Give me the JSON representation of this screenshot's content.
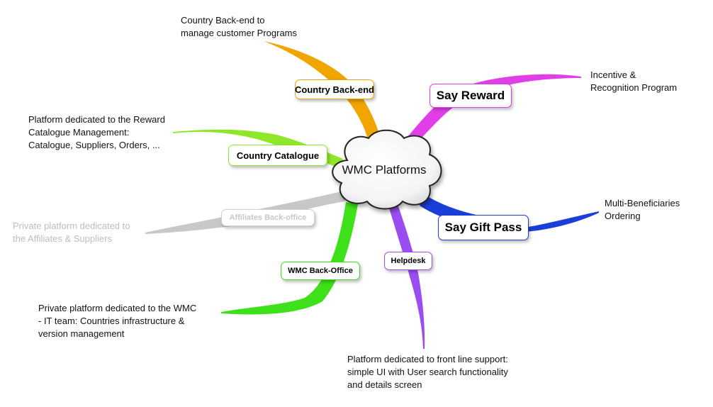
{
  "center": {
    "label": "WMC Platforms"
  },
  "nodes": [
    {
      "id": "country-backend",
      "label": "Country Back-end",
      "color": "#f0a500",
      "description": "Country Back-end to\nmanage customer Programs"
    },
    {
      "id": "say-reward",
      "label": "Say Reward",
      "color": "#e23ee8",
      "description": "Incentive &\nRecognition Program"
    },
    {
      "id": "country-catalogue",
      "label": "Country Catalogue",
      "color": "#8ee828",
      "description": "Platform dedicated to the Reward\nCatalogue Management:\nCatalogue, Suppliers, Orders, ..."
    },
    {
      "id": "affiliates-backoffice",
      "label": "Affiliates Back-office",
      "color": "#c8c8c8",
      "description": "Private platform dedicated to\nthe Affiliates & Suppliers"
    },
    {
      "id": "say-gift-pass",
      "label": "Say Gift Pass",
      "color": "#1a3ed8",
      "description": "Multi-Beneficiaries\nOrdering"
    },
    {
      "id": "wmc-backoffice",
      "label": "WMC Back-Office",
      "color": "#3ee01a",
      "description": "Private platform dedicated to the WMC\n- IT team: Countries infrastructure &\nversion management"
    },
    {
      "id": "helpdesk",
      "label": "Helpdesk",
      "color": "#9b4ef0",
      "description": "Platform dedicated to front line support:\nsimple UI with User search functionality\nand details screen"
    }
  ]
}
